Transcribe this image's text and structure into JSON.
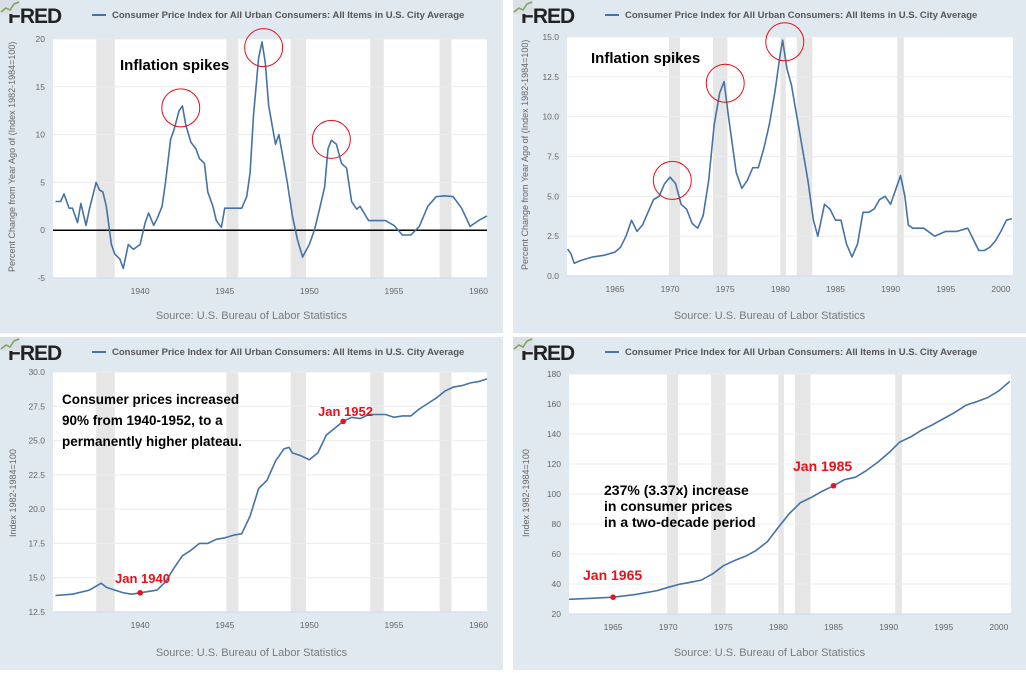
{
  "common": {
    "logo": "FRED",
    "series_title": "Consumer Price Index for All Urban Consumers: All Items in U.S. City Average",
    "source": "Source: U.S. Bureau of Labor Statistics",
    "colors": {
      "line": "#4572a7",
      "recession": "#e6e6e6",
      "panel_bg": "#e1e9f0",
      "annotation_red": "#e8101a"
    }
  },
  "chart_data": [
    {
      "type": "line",
      "title": "Consumer Price Index for All Urban Consumers: All Items in U.S. City Average",
      "ylabel": "Percent Change from Year Ago of (Index 1982-1984=100)",
      "xlim": [
        1934.85,
        1960.5
      ],
      "ylim": [
        -5,
        20
      ],
      "yticks": [
        -5,
        0,
        5,
        10,
        15,
        20
      ],
      "xticks": [
        1940,
        1945,
        1950,
        1955,
        1960
      ],
      "zero_line": true,
      "recessions": [
        [
          1937.4,
          1938.5
        ],
        [
          1945.1,
          1945.8
        ],
        [
          1948.9,
          1949.8
        ],
        [
          1953.6,
          1954.4
        ],
        [
          1957.7,
          1958.4
        ]
      ],
      "annotations": [
        "Inflation spikes"
      ],
      "circles": [
        [
          1942.4,
          12.8
        ],
        [
          1947.3,
          19.1
        ],
        [
          1951.3,
          9.5
        ]
      ],
      "markers": [],
      "x": [
        1935,
        1935.3,
        1935.5,
        1935.8,
        1936,
        1936.3,
        1936.5,
        1936.8,
        1937,
        1937.4,
        1937.6,
        1937.8,
        1938,
        1938.3,
        1938.5,
        1938.8,
        1939,
        1939.3,
        1939.6,
        1940,
        1940.3,
        1940.5,
        1940.8,
        1941,
        1941.3,
        1941.5,
        1941.8,
        1942,
        1942.3,
        1942.5,
        1942.7,
        1943,
        1943.3,
        1943.5,
        1943.8,
        1944,
        1944.3,
        1944.5,
        1944.8,
        1945,
        1945.5,
        1946,
        1946.3,
        1946.5,
        1946.7,
        1947,
        1947.2,
        1947.4,
        1947.6,
        1947.8,
        1948,
        1948.2,
        1948.5,
        1948.7,
        1949,
        1949.3,
        1949.6,
        1950,
        1950.3,
        1950.6,
        1950.9,
        1951.1,
        1951.3,
        1951.6,
        1951.9,
        1952.2,
        1952.5,
        1952.8,
        1953,
        1953.5,
        1954,
        1954.5,
        1955,
        1955.5,
        1956,
        1956.5,
        1957,
        1957.5,
        1958,
        1958.5,
        1959,
        1959.5,
        1960,
        1960.5
      ],
      "values": [
        3,
        3,
        3.8,
        2.3,
        2.3,
        0.8,
        2.8,
        0.5,
        2.2,
        5,
        4.2,
        4,
        2.5,
        -1.5,
        -2.5,
        -3,
        -4,
        -1.5,
        -2,
        -1.5,
        0.8,
        1.8,
        0.5,
        1.2,
        2.5,
        5,
        9.5,
        10.5,
        12.5,
        13,
        11,
        9.2,
        8.5,
        7.5,
        7,
        4,
        2.5,
        1,
        0.3,
        2.3,
        2.3,
        2.3,
        3.5,
        6,
        12,
        18,
        19.7,
        17.5,
        13,
        11,
        9,
        10,
        7,
        5,
        1.5,
        -1,
        -2.8,
        -1.5,
        0,
        2.2,
        4.5,
        8.5,
        9.4,
        9,
        7,
        6.5,
        3,
        2.2,
        2.5,
        1,
        1,
        1,
        0.5,
        -0.5,
        -0.5,
        0.4,
        2.5,
        3.5,
        3.6,
        3.5,
        2.3,
        0.4,
        1,
        1.5
      ]
    },
    {
      "type": "line",
      "title": "Consumer Price Index for All Urban Consumers: All Items in U.S. City Average",
      "ylabel": "Percent Change from Year Ago of (Index 1982-1984=100)",
      "xlim": [
        1960.65,
        2001.1
      ],
      "ylim": [
        0,
        15
      ],
      "yticks": [
        0,
        2.5,
        5,
        7.5,
        10,
        12.5,
        15
      ],
      "ytick_labels": [
        "0.0",
        "2.5",
        "5.0",
        "7.5",
        "10.0",
        "12.5",
        "15.0"
      ],
      "xticks": [
        1965,
        1970,
        1975,
        1980,
        1985,
        1990,
        1995,
        2000
      ],
      "zero_line": false,
      "recessions": [
        [
          1969.9,
          1970.9
        ],
        [
          1973.9,
          1975.2
        ],
        [
          1980,
          1980.5
        ],
        [
          1981.5,
          1982.9
        ],
        [
          1990.6,
          1991.2
        ]
      ],
      "annotations": [
        "Inflation spikes"
      ],
      "circles": [
        [
          1970.2,
          6
        ],
        [
          1975,
          12.1
        ],
        [
          1980.4,
          14.7
        ]
      ],
      "markers": [],
      "x": [
        1960.7,
        1961,
        1961.3,
        1962,
        1963,
        1964,
        1965,
        1965.5,
        1966,
        1966.5,
        1967,
        1967.5,
        1968,
        1968.5,
        1969,
        1969.5,
        1970,
        1970.5,
        1971,
        1971.5,
        1972,
        1972.5,
        1973,
        1973.5,
        1974,
        1974.5,
        1974.9,
        1975.3,
        1975.6,
        1976,
        1976.5,
        1977,
        1977.5,
        1978,
        1978.5,
        1979,
        1979.5,
        1980,
        1980.2,
        1980.6,
        1981,
        1981.5,
        1982,
        1982.5,
        1983,
        1983.4,
        1984,
        1984.5,
        1985,
        1985.5,
        1986,
        1986.5,
        1987,
        1987.5,
        1988,
        1988.5,
        1989,
        1989.5,
        1990,
        1990.5,
        1990.9,
        1991.3,
        1991.6,
        1992,
        1993,
        1994,
        1995,
        1996,
        1997,
        1997.5,
        1998,
        1998.5,
        1999,
        1999.5,
        2000,
        2000.5,
        2001
      ],
      "values": [
        1.7,
        1.4,
        0.8,
        1.0,
        1.2,
        1.3,
        1.5,
        1.8,
        2.5,
        3.5,
        2.8,
        3.2,
        4,
        4.8,
        5,
        5.8,
        6.2,
        5.8,
        4.5,
        4.2,
        3.3,
        3,
        3.8,
        6,
        9.5,
        11.5,
        12.2,
        10,
        8.5,
        6.5,
        5.5,
        6,
        6.8,
        6.8,
        8,
        9.5,
        11.5,
        14,
        14.8,
        13,
        12,
        10,
        8,
        6,
        3.5,
        2.5,
        4.5,
        4.2,
        3.5,
        3.5,
        2,
        1.2,
        2,
        4,
        4,
        4.2,
        4.8,
        5,
        4.5,
        5.5,
        6.3,
        5,
        3.2,
        3,
        3,
        2.5,
        2.8,
        2.8,
        3,
        2.3,
        1.6,
        1.6,
        1.8,
        2.2,
        2.8,
        3.5,
        3.6
      ]
    },
    {
      "type": "line",
      "title": "Consumer Price Index for All Urban Consumers: All Items in U.S. City Average",
      "ylabel": "Index 1982-1984=100",
      "xlim": [
        1934.85,
        1960.5
      ],
      "ylim": [
        12.5,
        30
      ],
      "yticks": [
        12.5,
        15,
        17.5,
        20,
        22.5,
        25,
        27.5,
        30
      ],
      "ytick_labels": [
        "12.5",
        "15.0",
        "17.5",
        "20.0",
        "22.5",
        "25.0",
        "27.5",
        "30.0"
      ],
      "xticks": [
        1940,
        1945,
        1950,
        1955,
        1960
      ],
      "zero_line": false,
      "recessions": [
        [
          1937.4,
          1938.5
        ],
        [
          1945.1,
          1945.8
        ],
        [
          1948.9,
          1949.8
        ],
        [
          1953.6,
          1954.4
        ],
        [
          1957.7,
          1958.4
        ]
      ],
      "annotations": [
        "Consumer prices increased",
        "90% from 1940-1952, to a",
        "permanently higher plateau."
      ],
      "circles": [],
      "markers": [
        {
          "label": "Jan 1940",
          "x": 1940,
          "y": 13.9
        },
        {
          "label": "Jan 1952",
          "x": 1952,
          "y": 26.4
        }
      ],
      "x": [
        1935,
        1936,
        1937,
        1937.7,
        1938,
        1938.5,
        1939,
        1939.5,
        1940,
        1940.5,
        1941,
        1941.5,
        1942,
        1942.5,
        1943,
        1943.5,
        1944,
        1944.5,
        1945,
        1945.5,
        1946,
        1946.5,
        1947,
        1947.5,
        1948,
        1948.5,
        1948.8,
        1949,
        1949.5,
        1950,
        1950.5,
        1951,
        1951.5,
        1952,
        1952.5,
        1953,
        1953.5,
        1954,
        1954.5,
        1955,
        1955.5,
        1956,
        1956.5,
        1957,
        1957.5,
        1958,
        1958.5,
        1959,
        1959.5,
        1960,
        1960.5
      ],
      "values": [
        13.7,
        13.8,
        14.1,
        14.6,
        14.3,
        14.1,
        13.9,
        13.8,
        13.9,
        14.0,
        14.1,
        14.7,
        15.7,
        16.6,
        17.0,
        17.5,
        17.5,
        17.8,
        17.9,
        18.1,
        18.2,
        19.5,
        21.5,
        22.1,
        23.5,
        24.4,
        24.5,
        24.1,
        23.9,
        23.6,
        24.1,
        25.4,
        25.9,
        26.4,
        26.7,
        26.6,
        26.9,
        26.9,
        26.9,
        26.7,
        26.8,
        26.8,
        27.3,
        27.7,
        28.1,
        28.6,
        28.9,
        29.0,
        29.2,
        29.3,
        29.5
      ]
    },
    {
      "type": "line",
      "title": "Consumer Price Index for All Urban Consumers: All Items in U.S. City Average",
      "ylabel": "Index 1982-1984=100",
      "xlim": [
        1961,
        2001.1
      ],
      "ylim": [
        20,
        180
      ],
      "yticks": [
        20,
        40,
        60,
        80,
        100,
        120,
        140,
        160,
        180
      ],
      "xticks": [
        1965,
        1970,
        1975,
        1980,
        1985,
        1990,
        1995,
        2000
      ],
      "zero_line": false,
      "recessions": [
        [
          1969.9,
          1970.9
        ],
        [
          1973.9,
          1975.2
        ],
        [
          1980,
          1980.5
        ],
        [
          1981.5,
          1982.9
        ],
        [
          1990.6,
          1991.2
        ]
      ],
      "annotations": [
        "237% (3.37x) increase",
        "in consumer prices",
        "in a two-decade period"
      ],
      "circles": [],
      "markers": [
        {
          "label": "Jan 1965",
          "x": 1965,
          "y": 31.2
        },
        {
          "label": "Jan 1985",
          "x": 1985,
          "y": 105.5
        }
      ],
      "x": [
        1961,
        1963,
        1965,
        1967,
        1969,
        1970,
        1971,
        1972,
        1973,
        1974,
        1975,
        1976,
        1977,
        1978,
        1979,
        1980,
        1981,
        1982,
        1983,
        1984,
        1985,
        1986,
        1987,
        1988,
        1989,
        1990,
        1991,
        1992,
        1993,
        1994,
        1995,
        1996,
        1997,
        1998,
        1999,
        2000,
        2001
      ],
      "values": [
        29.8,
        30.5,
        31.2,
        32.9,
        35.6,
        37.8,
        39.8,
        41.1,
        42.6,
        46.6,
        52.1,
        55.6,
        58.5,
        62.5,
        68.3,
        77.8,
        87,
        94.3,
        97.8,
        101.9,
        105.5,
        109.6,
        111.2,
        115.7,
        121.1,
        127.4,
        134.6,
        138.1,
        142.6,
        146.2,
        150.3,
        154.4,
        159.1,
        161.6,
        164.3,
        168.8,
        175.1
      ]
    }
  ]
}
